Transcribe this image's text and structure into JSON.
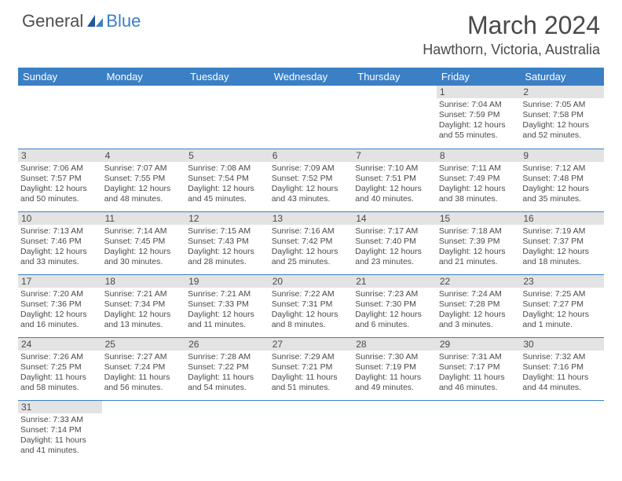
{
  "logo": {
    "general": "General",
    "blue": "Blue"
  },
  "title": "March 2024",
  "location": "Hawthorn, Victoria, Australia",
  "colors": {
    "header_bg": "#3b7fc4",
    "header_text": "#ffffff",
    "daynum_bg": "#e3e3e3",
    "cell_border": "#3b7fc4",
    "body_text": "#4a4a4a"
  },
  "day_headers": [
    "Sunday",
    "Monday",
    "Tuesday",
    "Wednesday",
    "Thursday",
    "Friday",
    "Saturday"
  ],
  "weeks": [
    [
      null,
      null,
      null,
      null,
      null,
      {
        "n": "1",
        "sr": "Sunrise: 7:04 AM",
        "ss": "Sunset: 7:59 PM",
        "dl": "Daylight: 12 hours and 55 minutes."
      },
      {
        "n": "2",
        "sr": "Sunrise: 7:05 AM",
        "ss": "Sunset: 7:58 PM",
        "dl": "Daylight: 12 hours and 52 minutes."
      }
    ],
    [
      {
        "n": "3",
        "sr": "Sunrise: 7:06 AM",
        "ss": "Sunset: 7:57 PM",
        "dl": "Daylight: 12 hours and 50 minutes."
      },
      {
        "n": "4",
        "sr": "Sunrise: 7:07 AM",
        "ss": "Sunset: 7:55 PM",
        "dl": "Daylight: 12 hours and 48 minutes."
      },
      {
        "n": "5",
        "sr": "Sunrise: 7:08 AM",
        "ss": "Sunset: 7:54 PM",
        "dl": "Daylight: 12 hours and 45 minutes."
      },
      {
        "n": "6",
        "sr": "Sunrise: 7:09 AM",
        "ss": "Sunset: 7:52 PM",
        "dl": "Daylight: 12 hours and 43 minutes."
      },
      {
        "n": "7",
        "sr": "Sunrise: 7:10 AM",
        "ss": "Sunset: 7:51 PM",
        "dl": "Daylight: 12 hours and 40 minutes."
      },
      {
        "n": "8",
        "sr": "Sunrise: 7:11 AM",
        "ss": "Sunset: 7:49 PM",
        "dl": "Daylight: 12 hours and 38 minutes."
      },
      {
        "n": "9",
        "sr": "Sunrise: 7:12 AM",
        "ss": "Sunset: 7:48 PM",
        "dl": "Daylight: 12 hours and 35 minutes."
      }
    ],
    [
      {
        "n": "10",
        "sr": "Sunrise: 7:13 AM",
        "ss": "Sunset: 7:46 PM",
        "dl": "Daylight: 12 hours and 33 minutes."
      },
      {
        "n": "11",
        "sr": "Sunrise: 7:14 AM",
        "ss": "Sunset: 7:45 PM",
        "dl": "Daylight: 12 hours and 30 minutes."
      },
      {
        "n": "12",
        "sr": "Sunrise: 7:15 AM",
        "ss": "Sunset: 7:43 PM",
        "dl": "Daylight: 12 hours and 28 minutes."
      },
      {
        "n": "13",
        "sr": "Sunrise: 7:16 AM",
        "ss": "Sunset: 7:42 PM",
        "dl": "Daylight: 12 hours and 25 minutes."
      },
      {
        "n": "14",
        "sr": "Sunrise: 7:17 AM",
        "ss": "Sunset: 7:40 PM",
        "dl": "Daylight: 12 hours and 23 minutes."
      },
      {
        "n": "15",
        "sr": "Sunrise: 7:18 AM",
        "ss": "Sunset: 7:39 PM",
        "dl": "Daylight: 12 hours and 21 minutes."
      },
      {
        "n": "16",
        "sr": "Sunrise: 7:19 AM",
        "ss": "Sunset: 7:37 PM",
        "dl": "Daylight: 12 hours and 18 minutes."
      }
    ],
    [
      {
        "n": "17",
        "sr": "Sunrise: 7:20 AM",
        "ss": "Sunset: 7:36 PM",
        "dl": "Daylight: 12 hours and 16 minutes."
      },
      {
        "n": "18",
        "sr": "Sunrise: 7:21 AM",
        "ss": "Sunset: 7:34 PM",
        "dl": "Daylight: 12 hours and 13 minutes."
      },
      {
        "n": "19",
        "sr": "Sunrise: 7:21 AM",
        "ss": "Sunset: 7:33 PM",
        "dl": "Daylight: 12 hours and 11 minutes."
      },
      {
        "n": "20",
        "sr": "Sunrise: 7:22 AM",
        "ss": "Sunset: 7:31 PM",
        "dl": "Daylight: 12 hours and 8 minutes."
      },
      {
        "n": "21",
        "sr": "Sunrise: 7:23 AM",
        "ss": "Sunset: 7:30 PM",
        "dl": "Daylight: 12 hours and 6 minutes."
      },
      {
        "n": "22",
        "sr": "Sunrise: 7:24 AM",
        "ss": "Sunset: 7:28 PM",
        "dl": "Daylight: 12 hours and 3 minutes."
      },
      {
        "n": "23",
        "sr": "Sunrise: 7:25 AM",
        "ss": "Sunset: 7:27 PM",
        "dl": "Daylight: 12 hours and 1 minute."
      }
    ],
    [
      {
        "n": "24",
        "sr": "Sunrise: 7:26 AM",
        "ss": "Sunset: 7:25 PM",
        "dl": "Daylight: 11 hours and 58 minutes."
      },
      {
        "n": "25",
        "sr": "Sunrise: 7:27 AM",
        "ss": "Sunset: 7:24 PM",
        "dl": "Daylight: 11 hours and 56 minutes."
      },
      {
        "n": "26",
        "sr": "Sunrise: 7:28 AM",
        "ss": "Sunset: 7:22 PM",
        "dl": "Daylight: 11 hours and 54 minutes."
      },
      {
        "n": "27",
        "sr": "Sunrise: 7:29 AM",
        "ss": "Sunset: 7:21 PM",
        "dl": "Daylight: 11 hours and 51 minutes."
      },
      {
        "n": "28",
        "sr": "Sunrise: 7:30 AM",
        "ss": "Sunset: 7:19 PM",
        "dl": "Daylight: 11 hours and 49 minutes."
      },
      {
        "n": "29",
        "sr": "Sunrise: 7:31 AM",
        "ss": "Sunset: 7:17 PM",
        "dl": "Daylight: 11 hours and 46 minutes."
      },
      {
        "n": "30",
        "sr": "Sunrise: 7:32 AM",
        "ss": "Sunset: 7:16 PM",
        "dl": "Daylight: 11 hours and 44 minutes."
      }
    ],
    [
      {
        "n": "31",
        "sr": "Sunrise: 7:33 AM",
        "ss": "Sunset: 7:14 PM",
        "dl": "Daylight: 11 hours and 41 minutes."
      },
      null,
      null,
      null,
      null,
      null,
      null
    ]
  ]
}
